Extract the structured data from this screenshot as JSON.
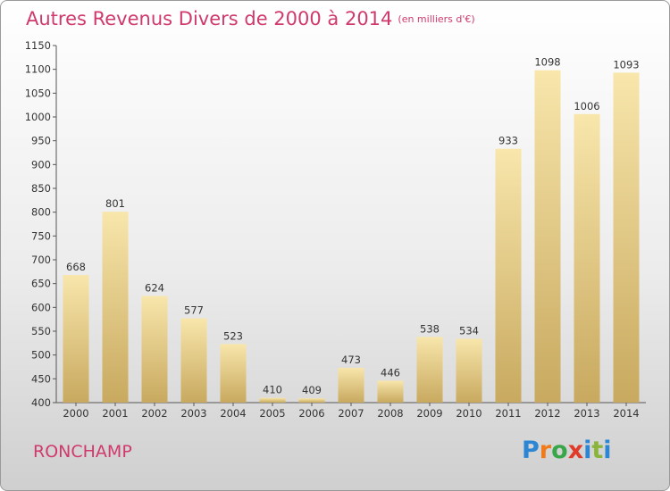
{
  "chart_data": {
    "type": "bar",
    "title": "Autres Revenus Divers de 2000 à 2014",
    "subtitle": "(en milliers d'€)",
    "categories": [
      "2000",
      "2001",
      "2002",
      "2003",
      "2004",
      "2005",
      "2006",
      "2007",
      "2008",
      "2009",
      "2010",
      "2011",
      "2012",
      "2013",
      "2014"
    ],
    "values": [
      668,
      801,
      624,
      577,
      523,
      410,
      409,
      473,
      446,
      538,
      534,
      933,
      1098,
      1006,
      1093
    ],
    "yticks": [
      400,
      450,
      500,
      550,
      600,
      650,
      700,
      750,
      800,
      850,
      900,
      950,
      1000,
      1050,
      1100,
      1150
    ],
    "ylim": [
      400,
      1150
    ],
    "xlabel": "",
    "ylabel": "",
    "grid": false
  },
  "footer": {
    "commune": "RONCHAMP",
    "logo": "Proxiti"
  },
  "colors": {
    "title": "#d03a6a",
    "bar_light": "#f7e3a6",
    "bar_dark": "#c9a860"
  }
}
